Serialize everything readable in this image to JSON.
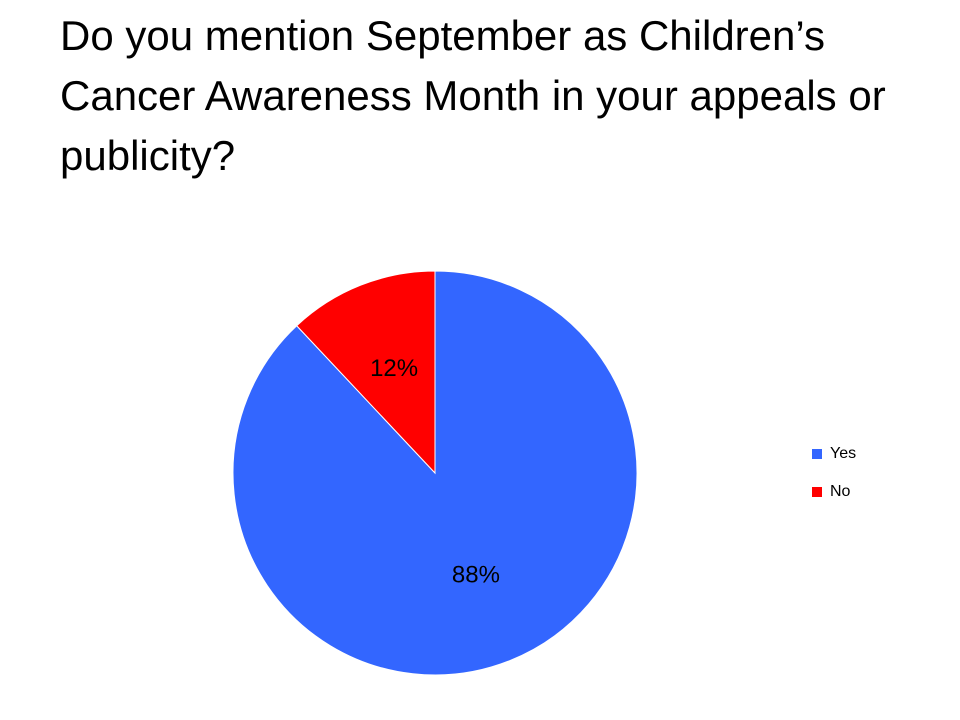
{
  "chart_data": {
    "type": "pie",
    "title": "Do you mention September as Children’s Cancer Awareness Month in your appeals or publicity?",
    "categories": [
      "Yes",
      "No"
    ],
    "values": [
      88,
      12
    ],
    "value_labels": [
      "88%",
      "12%"
    ],
    "colors": [
      "#3366ff",
      "#ff0000"
    ],
    "legend": "right"
  }
}
